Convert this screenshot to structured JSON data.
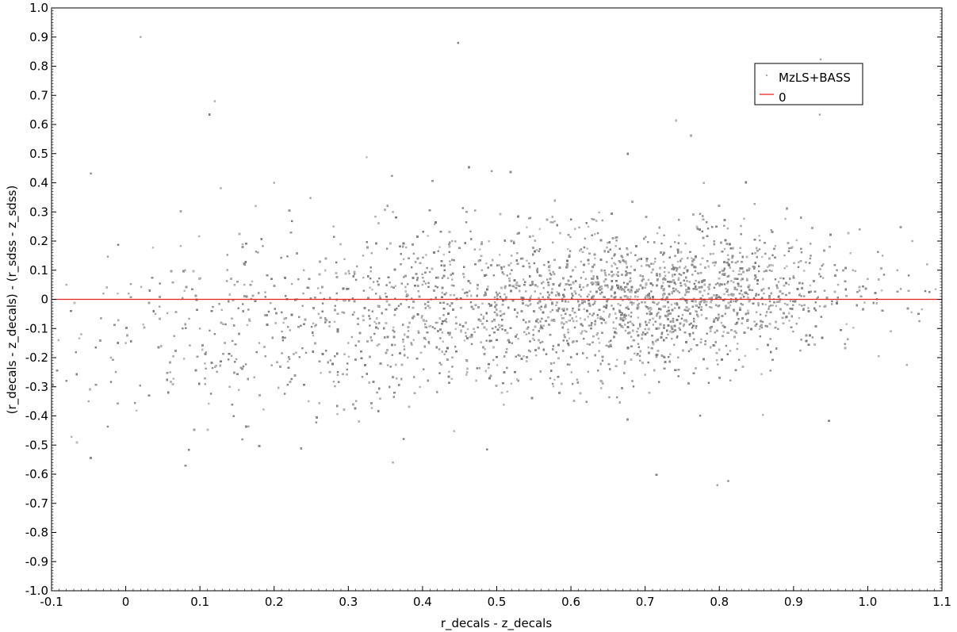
{
  "chart_data": {
    "type": "scatter",
    "title": "",
    "xlabel": "r_decals - z_decals",
    "ylabel": "(r_decals - z_decals) - (r_sdss - z_sdss)",
    "xlim": [
      -0.1,
      1.1
    ],
    "ylim": [
      -1.0,
      1.0
    ],
    "x_ticks": [
      -0.1,
      0,
      0.1,
      0.2,
      0.3,
      0.4,
      0.5,
      0.6,
      0.7,
      0.8,
      0.9,
      1.0,
      1.1
    ],
    "x_tick_labels": [
      "-0.1",
      "0",
      "0.1",
      "0.2",
      "0.3",
      "0.4",
      "0.5",
      "0.6",
      "0.7",
      "0.8",
      "0.9",
      "1.0",
      "1.1"
    ],
    "y_ticks": [
      -1.0,
      -0.9,
      -0.8,
      -0.7,
      -0.6,
      -0.5,
      -0.4,
      -0.3,
      -0.2,
      -0.1,
      0,
      0.1,
      0.2,
      0.3,
      0.4,
      0.5,
      0.6,
      0.7,
      0.8,
      0.9,
      1.0
    ],
    "y_tick_labels": [
      "-1.0",
      "-0.9",
      "-0.8",
      "-0.7",
      "-0.6",
      "-0.5",
      "-0.4",
      "-0.3",
      "-0.2",
      "-0.1",
      "0",
      "0.1",
      "0.2",
      "0.3",
      "0.4",
      "0.5",
      "0.6",
      "0.7",
      "0.8",
      "0.9",
      "1.0"
    ],
    "grid": false,
    "legend_position": "top-right",
    "series": [
      {
        "name": "MzLS+BASS",
        "kind": "scatter",
        "color": "#a9a9a9",
        "points": [
          [
            -0.08,
            0.05
          ],
          [
            -0.06,
            -0.12
          ],
          [
            -0.05,
            -0.35
          ],
          [
            -0.03,
            0.02
          ],
          [
            -0.02,
            -0.2
          ],
          [
            0.0,
            -0.15
          ],
          [
            0.02,
            0.9
          ],
          [
            0.04,
            -0.05
          ],
          [
            0.06,
            -0.25
          ],
          [
            0.08,
            0.1
          ],
          [
            0.1,
            -0.1
          ],
          [
            0.12,
            0.68
          ],
          [
            0.14,
            -0.3
          ],
          [
            0.16,
            0.05
          ],
          [
            0.18,
            -0.15
          ],
          [
            0.2,
            0.4
          ],
          [
            0.22,
            -0.2
          ],
          [
            0.24,
            0.1
          ],
          [
            0.26,
            -0.05
          ],
          [
            0.28,
            0.25
          ],
          [
            0.3,
            -0.15
          ],
          [
            0.32,
            0.15
          ],
          [
            0.34,
            -0.1
          ],
          [
            0.36,
            0.3
          ],
          [
            0.38,
            -0.2
          ],
          [
            0.4,
            0.05
          ],
          [
            0.42,
            -0.08
          ],
          [
            0.44,
            0.2
          ],
          [
            0.46,
            -0.25
          ],
          [
            0.48,
            0.1
          ],
          [
            0.5,
            -0.05
          ],
          [
            0.52,
            0.15
          ],
          [
            0.54,
            -0.12
          ],
          [
            0.56,
            0.08
          ],
          [
            0.58,
            -0.02
          ],
          [
            0.6,
            0.05
          ],
          [
            0.62,
            0.07
          ],
          [
            0.64,
            -0.06
          ],
          [
            0.66,
            0.12
          ],
          [
            0.68,
            0.0
          ],
          [
            0.7,
            0.04
          ],
          [
            0.72,
            0.08
          ],
          [
            0.74,
            -0.03
          ],
          [
            0.76,
            0.06
          ],
          [
            0.78,
            0.03
          ],
          [
            0.8,
            0.05
          ],
          [
            0.82,
            -0.04
          ],
          [
            0.84,
            0.1
          ],
          [
            0.86,
            0.02
          ],
          [
            0.88,
            0.06
          ],
          [
            0.9,
            0.08
          ],
          [
            0.92,
            -0.03
          ],
          [
            0.94,
            0.12
          ],
          [
            0.96,
            0.05
          ],
          [
            0.98,
            0.1
          ],
          [
            1.0,
            0.07
          ],
          [
            1.02,
            0.15
          ],
          [
            1.04,
            0.1
          ],
          [
            1.06,
            0.2
          ],
          [
            1.08,
            0.12
          ]
        ]
      },
      {
        "name": "0",
        "kind": "line",
        "color": "#e8231f",
        "y": 0
      }
    ]
  }
}
